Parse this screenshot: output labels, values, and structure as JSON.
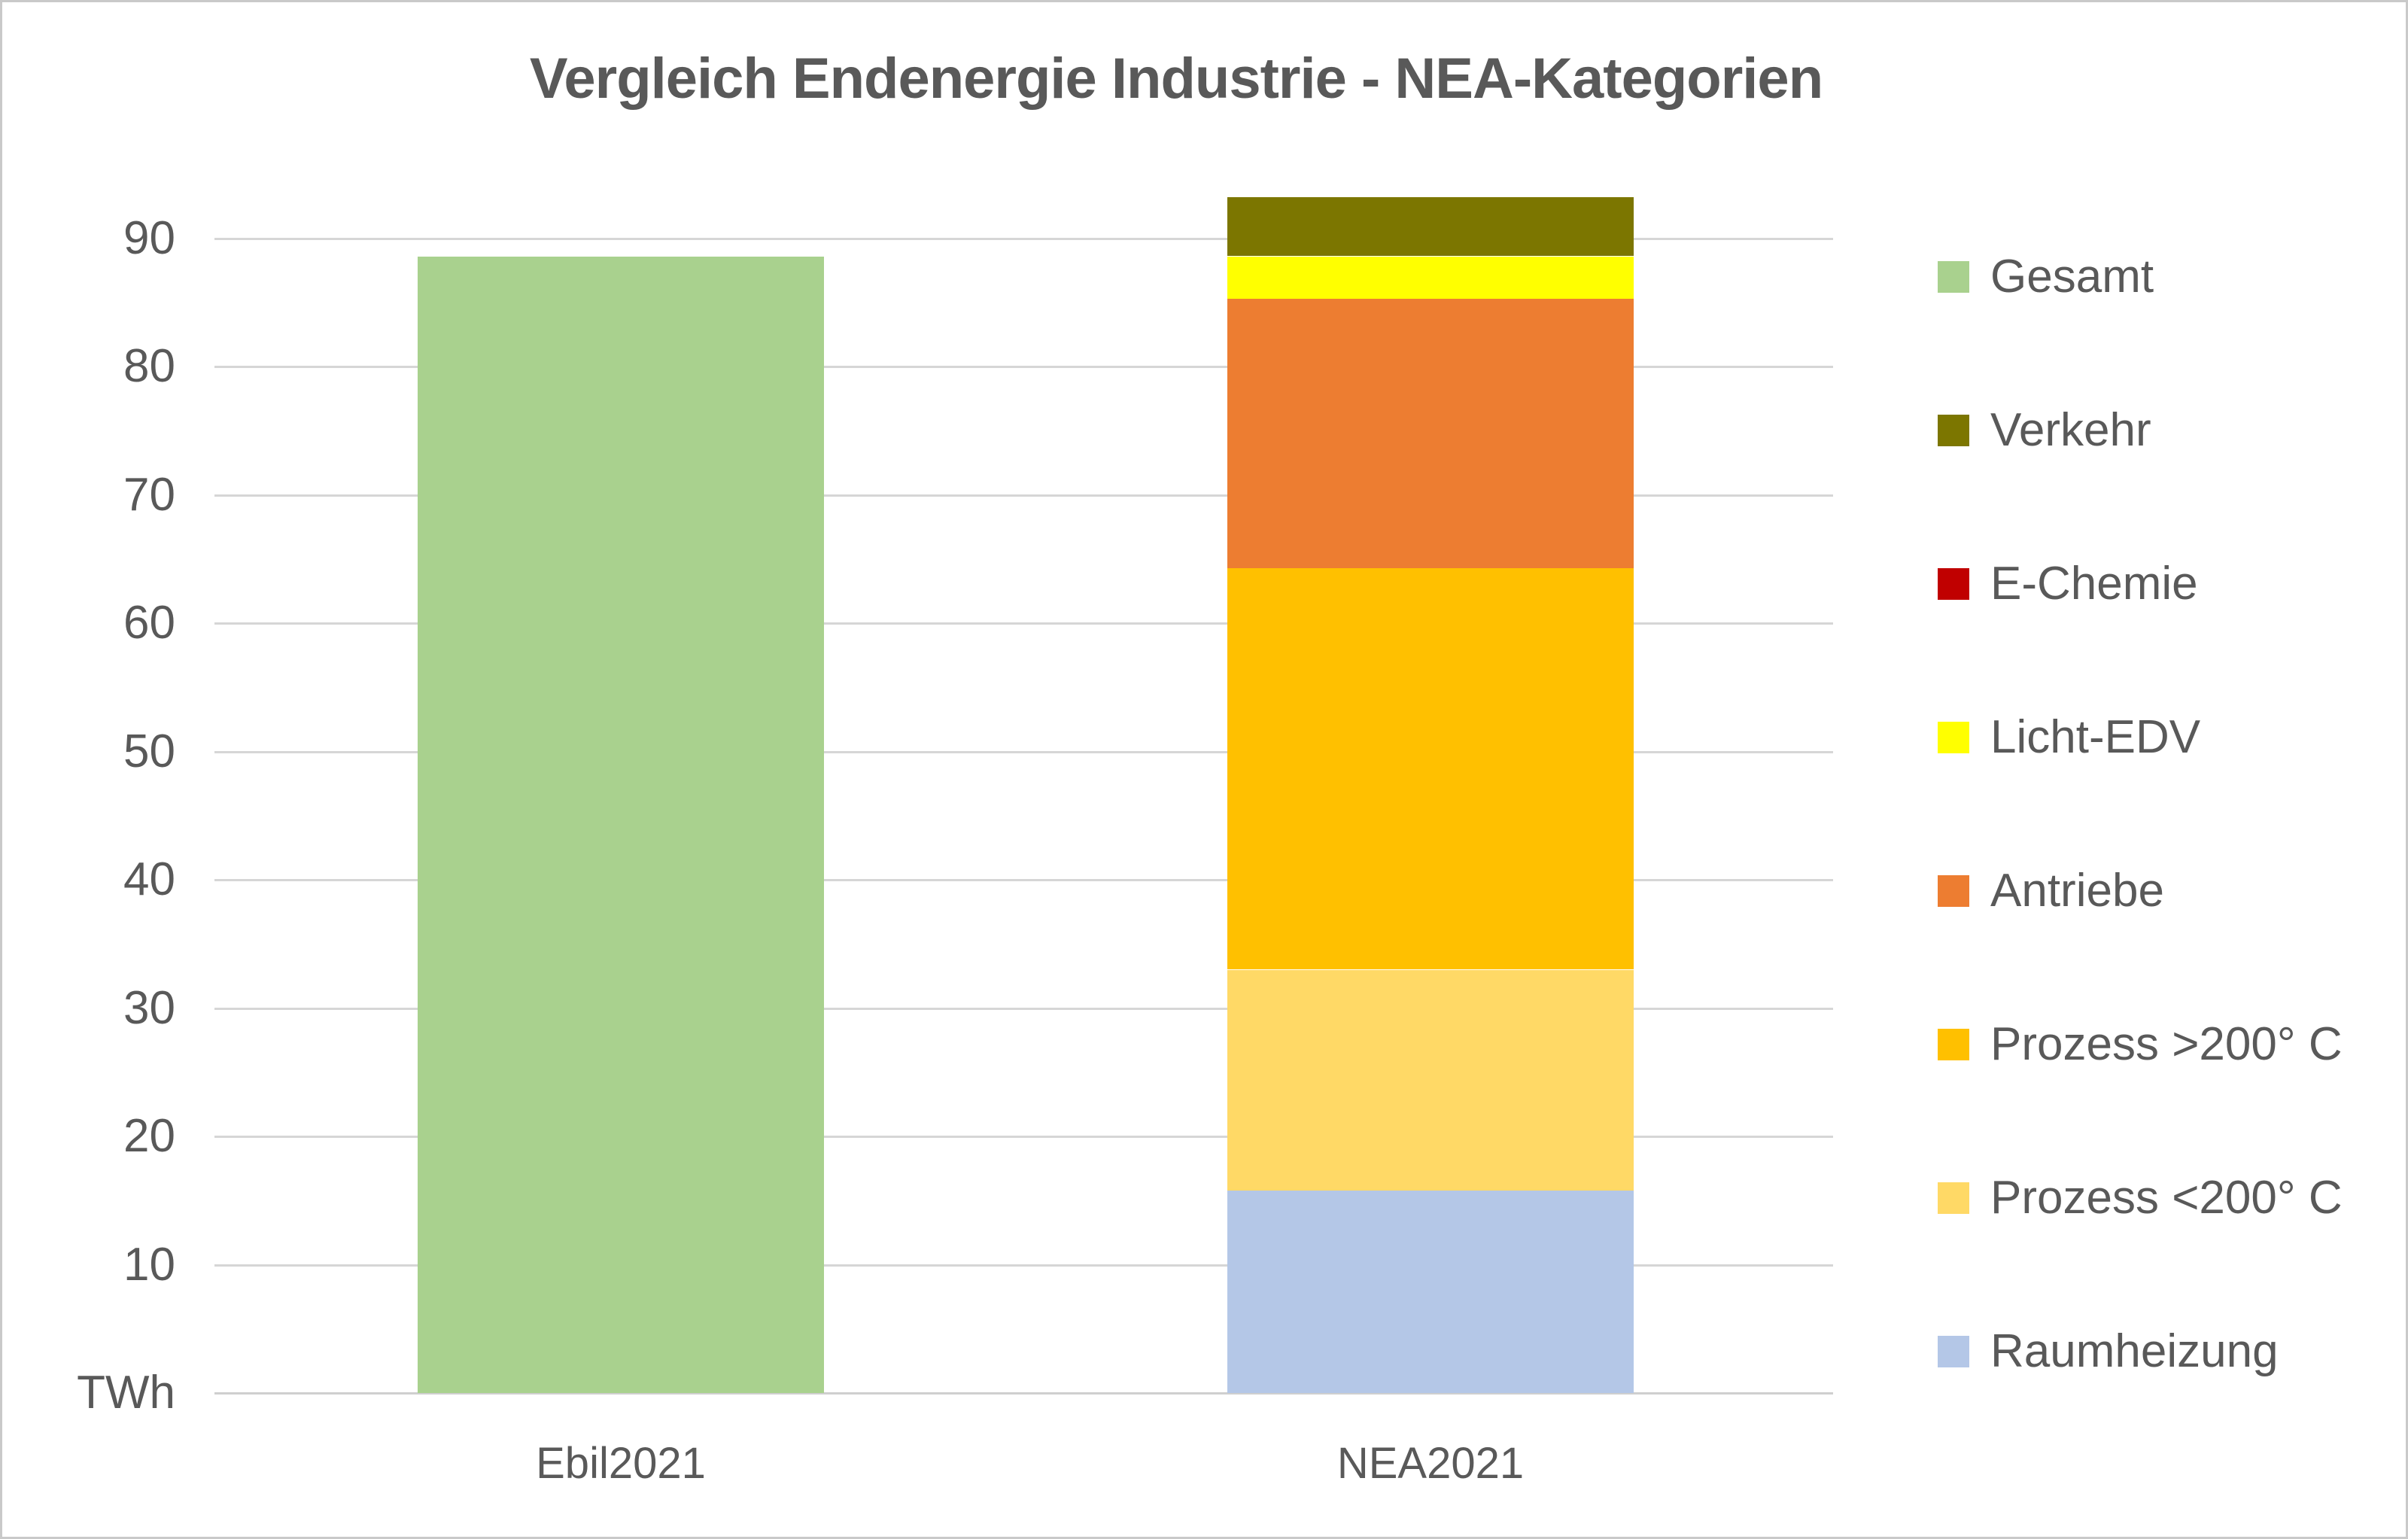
{
  "title": "Vergleich Endenergie Industrie - NEA-Kategorien",
  "colors": {
    "text": "#595959",
    "grid": "#D6D6D6",
    "background": "#FFFFFF",
    "frame": "#C9C9C9"
  },
  "chart_data": {
    "type": "bar",
    "stacked": true,
    "title": "Vergleich Endenergie Industrie - NEA-Kategorien",
    "unit_label": "TWh",
    "xlabel": "",
    "ylabel": "TWh",
    "ylim": [
      0,
      95
    ],
    "yticks": [
      10,
      20,
      30,
      40,
      50,
      60,
      70,
      80,
      90
    ],
    "grid": "horizontal",
    "legend_position": "right",
    "categories": [
      "Ebil2021",
      "NEA2021"
    ],
    "series": [
      {
        "name": "Gesamt",
        "color": "#A9D18E",
        "values": [
          88.6,
          0
        ]
      },
      {
        "name": "Raumheizung",
        "color": "#B4C7E7",
        "values": [
          0,
          15.8
        ]
      },
      {
        "name": "Prozess <200° C",
        "color": "#FFD966",
        "values": [
          0,
          17.2
        ]
      },
      {
        "name": "Prozess >200° C",
        "color": "#FFC000",
        "values": [
          0,
          31.3
        ]
      },
      {
        "name": "Antriebe",
        "color": "#ED7D31",
        "values": [
          0,
          21.0
        ]
      },
      {
        "name": "Licht-EDV",
        "color": "#FFFF00",
        "values": [
          0,
          3.3
        ]
      },
      {
        "name": "E-Chemie",
        "color": "#C00000",
        "values": [
          0,
          0
        ]
      },
      {
        "name": "Verkehr",
        "color": "#7C7600",
        "values": [
          0,
          4.6
        ]
      }
    ],
    "totals": {
      "Ebil2021": 88.6,
      "NEA2021": 93.2
    },
    "legend": [
      {
        "label": "Gesamt",
        "color": "#A9D18E"
      },
      {
        "label": "Verkehr",
        "color": "#7C7600"
      },
      {
        "label": "E-Chemie",
        "color": "#C00000"
      },
      {
        "label": "Licht-EDV",
        "color": "#FFFF00"
      },
      {
        "label": "Antriebe",
        "color": "#ED7D31"
      },
      {
        "label": "Prozess >200° C",
        "color": "#FFC000"
      },
      {
        "label": "Prozess <200° C",
        "color": "#FFD966"
      },
      {
        "label": "Raumheizung",
        "color": "#B4C7E7"
      }
    ]
  }
}
